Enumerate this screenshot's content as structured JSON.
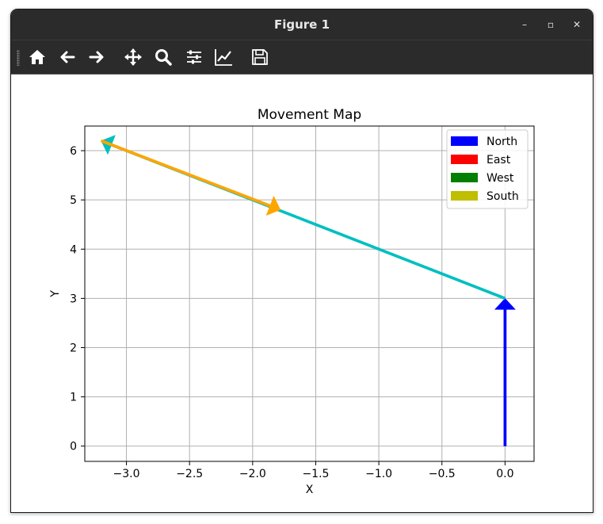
{
  "window": {
    "title": "Figure 1",
    "controls": {
      "minimize": "–",
      "maximize": "▫",
      "close": "✕"
    }
  },
  "toolbar": {
    "items": [
      "home-icon",
      "back-icon",
      "forward-icon",
      "pan-icon",
      "zoom-icon",
      "configure-subplots-icon",
      "edit-axis-icon",
      "save-icon"
    ]
  },
  "colors": {
    "north": "#0000ff",
    "east": "#ff0000",
    "west": "#008000",
    "south": "#bfbf00",
    "path_cyan": "#00bfbf",
    "path_orange": "#ffa500",
    "grid": "#b0b0b0"
  },
  "chart_data": {
    "type": "quiver",
    "title": "Movement Map",
    "xlabel": "X",
    "ylabel": "Y",
    "xlim": [
      -3.33,
      0.23
    ],
    "ylim": [
      -0.31,
      6.5
    ],
    "xticks": [
      -3.0,
      -2.5,
      -2.0,
      -1.5,
      -1.0,
      -0.5,
      0.0
    ],
    "xtick_labels": [
      "−3.0",
      "−2.5",
      "−2.0",
      "−1.5",
      "−1.0",
      "−0.5",
      "0.0"
    ],
    "yticks": [
      0,
      1,
      2,
      3,
      4,
      5,
      6
    ],
    "ytick_labels": [
      "0",
      "1",
      "2",
      "3",
      "4",
      "5",
      "6"
    ],
    "grid": true,
    "legend_position": "top-right",
    "legend": [
      {
        "label": "North",
        "color": "#0000ff"
      },
      {
        "label": "East",
        "color": "#ff0000"
      },
      {
        "label": "West",
        "color": "#008000"
      },
      {
        "label": "South",
        "color": "#bfbf00"
      }
    ],
    "arrows": [
      {
        "x0": 0.0,
        "y0": 0.0,
        "x1": 0.0,
        "y1": 3.0,
        "color": "#0000ff"
      },
      {
        "x0": 0.0,
        "y0": 3.0,
        "x1": -3.2,
        "y1": 6.2,
        "color": "#00bfbf"
      },
      {
        "x0": -3.2,
        "y0": 6.2,
        "x1": -1.78,
        "y1": 4.8,
        "color": "#ffa500"
      }
    ]
  }
}
